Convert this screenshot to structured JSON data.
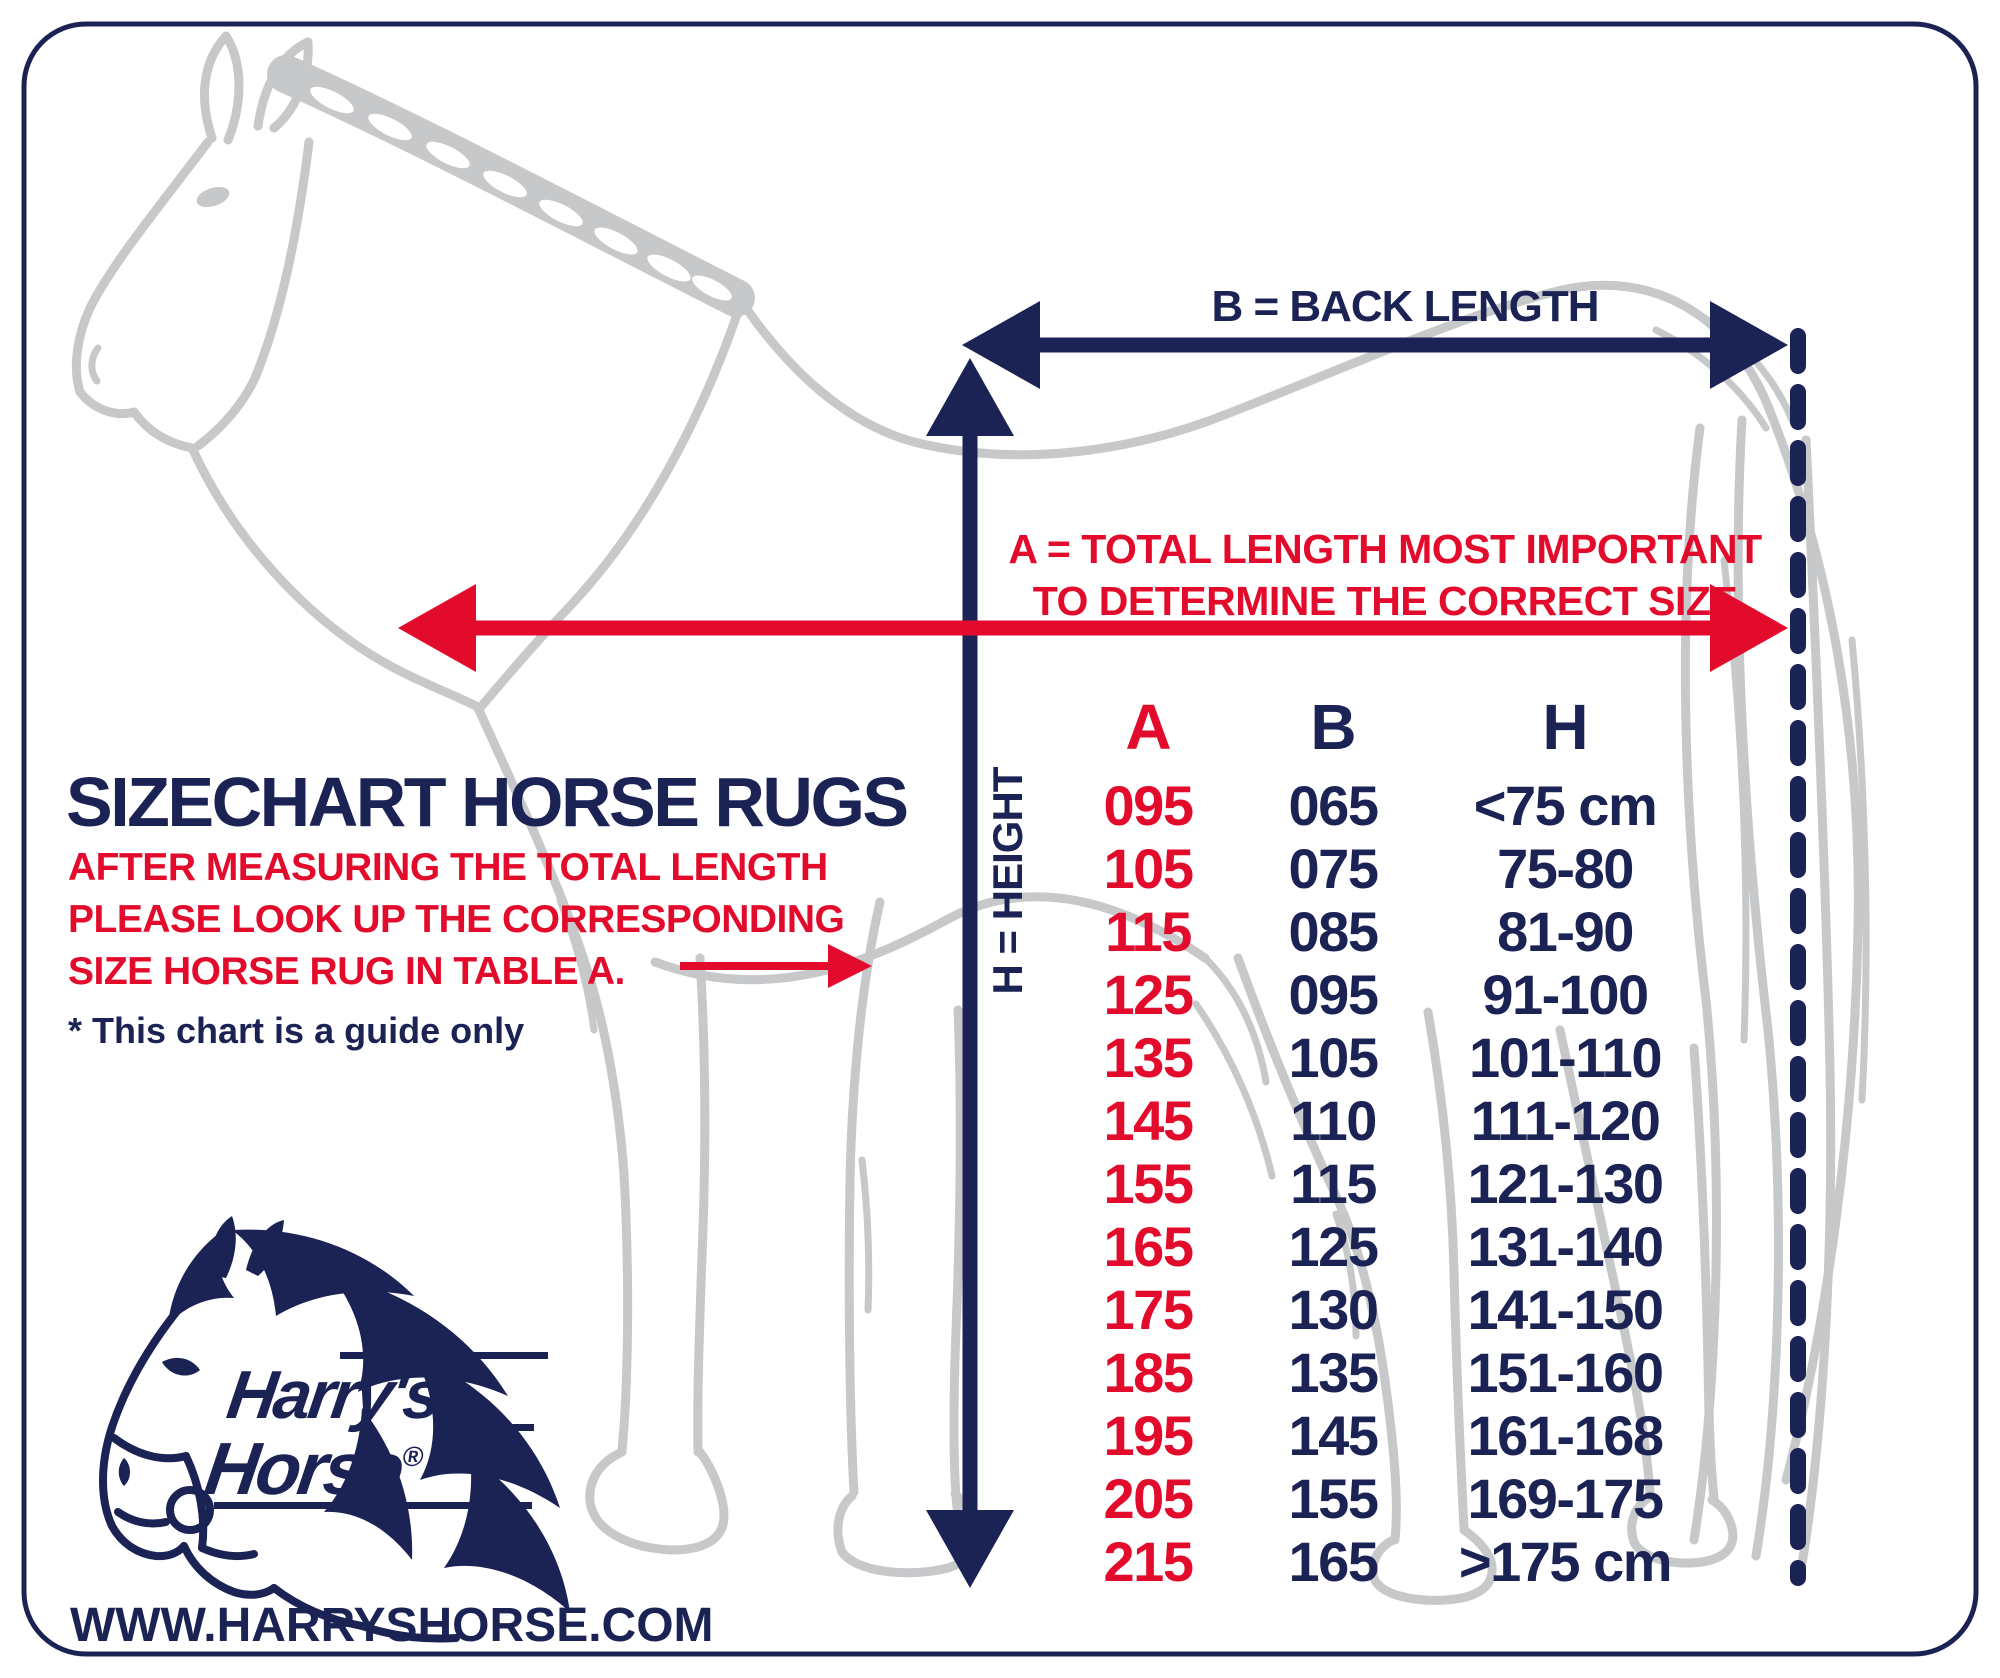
{
  "colors": {
    "navy": "#1b2355",
    "red": "#e30b2b",
    "gray": "#c7c8ca"
  },
  "diagram": {
    "back_length_label": "B = BACK LENGTH",
    "total_length_label_line1": "A = TOTAL LENGTH MOST IMPORTANT",
    "total_length_label_line2": "TO DETERMINE THE CORRECT SIZE",
    "height_label": "H = HEIGHT"
  },
  "sizechart": {
    "title": "SIZECHART HORSE RUGS",
    "instructions": [
      "AFTER MEASURING THE TOTAL LENGTH",
      "PLEASE LOOK UP THE CORRESPONDING",
      "SIZE HORSE RUG IN TABLE A."
    ],
    "note": "* This chart is a guide only"
  },
  "brand": {
    "name_line1": "Harry's",
    "name_line2": "Horse",
    "registered": "®",
    "website": "WWW.HARRYSHORSE.COM"
  },
  "chart_data": {
    "type": "table",
    "columns": [
      "A",
      "B",
      "H"
    ],
    "rows": [
      [
        "095",
        "065",
        "<75 cm"
      ],
      [
        "105",
        "075",
        "75-80"
      ],
      [
        "115",
        "085",
        "81-90"
      ],
      [
        "125",
        "095",
        "91-100"
      ],
      [
        "135",
        "105",
        "101-110"
      ],
      [
        "145",
        "110",
        "111-120"
      ],
      [
        "155",
        "115",
        "121-130"
      ],
      [
        "165",
        "125",
        "131-140"
      ],
      [
        "175",
        "130",
        "141-150"
      ],
      [
        "185",
        "135",
        "151-160"
      ],
      [
        "195",
        "145",
        "161-168"
      ],
      [
        "205",
        "155",
        "169-175"
      ],
      [
        "215",
        "165",
        ">175 cm"
      ]
    ],
    "units": "cm",
    "title": "SIZECHART HORSE RUGS"
  }
}
